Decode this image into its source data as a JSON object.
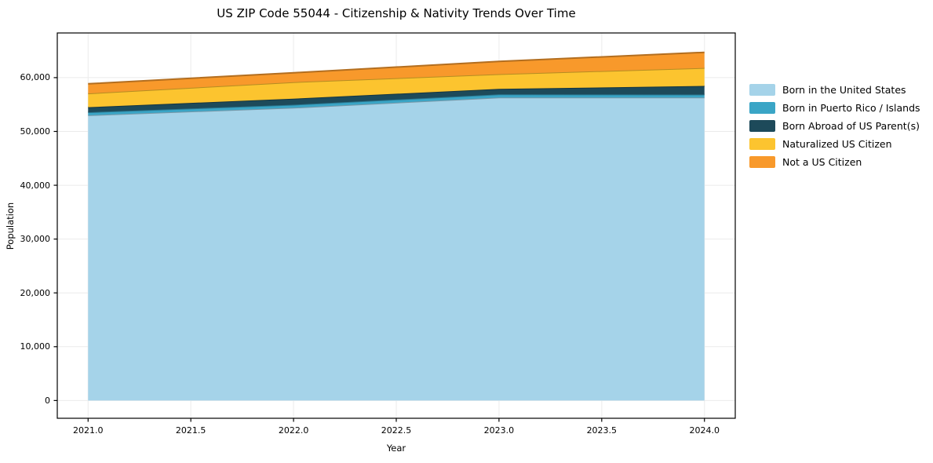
{
  "title": "US ZIP Code 55044 - Citizenship & Nativity Trends Over Time",
  "chart_data": {
    "type": "area",
    "stacked": true,
    "title": "US ZIP Code 55044 - Citizenship & Nativity Trends Over Time",
    "xlabel": "Year",
    "ylabel": "Population",
    "x": [
      2021,
      2022,
      2023,
      2024
    ],
    "series": [
      {
        "name": "Born in the United States",
        "color": "#a5d3e9",
        "values": [
          53000,
          54400,
          56300,
          56300
        ]
      },
      {
        "name": "Born in Puerto Rico / Islands",
        "color": "#3aa5c6",
        "values": [
          550,
          550,
          600,
          550
        ]
      },
      {
        "name": "Born Abroad of US Parent(s)",
        "color": "#1d4a5a",
        "values": [
          950,
          1150,
          1000,
          1600
        ]
      },
      {
        "name": "Naturalized US Citizen",
        "color": "#fcc42f",
        "values": [
          2550,
          3050,
          2750,
          3350
        ]
      },
      {
        "name": "Not a US Citizen",
        "color": "#f8992b",
        "values": [
          1800,
          1750,
          2350,
          2900
        ]
      }
    ],
    "x_ticks": [
      "2021.0",
      "2021.5",
      "2022.0",
      "2022.5",
      "2023.0",
      "2023.5",
      "2024.0"
    ],
    "x_tick_values": [
      2021.0,
      2021.5,
      2022.0,
      2022.5,
      2023.0,
      2023.5,
      2024.0
    ],
    "y_ticks": [
      "0",
      "10,000",
      "20,000",
      "30,000",
      "40,000",
      "50,000",
      "60,000"
    ],
    "y_tick_values": [
      0,
      10000,
      20000,
      30000,
      40000,
      50000,
      60000
    ],
    "xlim": [
      2020.85,
      2024.15
    ],
    "ylim": [
      -3300,
      68300
    ],
    "grid": true,
    "grid_color": "#ebebeb",
    "frame_color": "#000000",
    "legend_position": "right"
  }
}
